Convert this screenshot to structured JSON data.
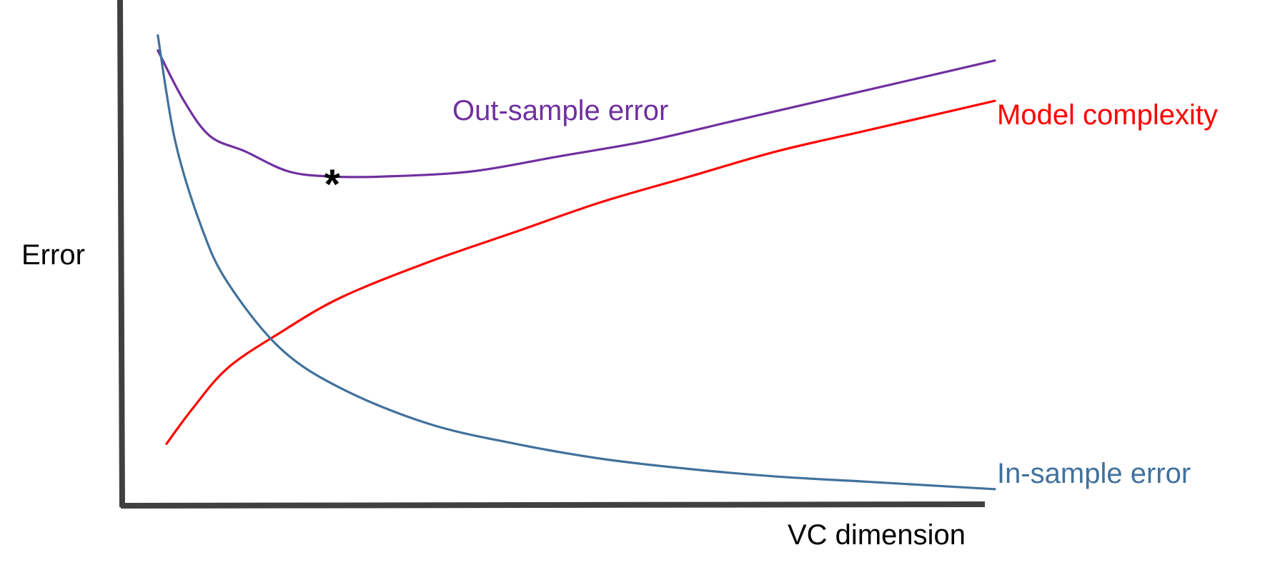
{
  "chart_data": {
    "type": "line",
    "title": "",
    "xlabel": "VC dimension",
    "ylabel": "Error",
    "xlim": [
      0,
      1
    ],
    "ylim": [
      0,
      1
    ],
    "grid": false,
    "legend": "none",
    "series": [
      {
        "name": "Out-sample error",
        "color": "#7030A0",
        "x": [
          0.04,
          0.07,
          0.1,
          0.14,
          0.19,
          0.24,
          0.3,
          0.4,
          0.5,
          0.6,
          0.7,
          0.8,
          0.9,
          1.0
        ],
        "y": [
          0.9,
          0.8,
          0.73,
          0.7,
          0.66,
          0.65,
          0.65,
          0.66,
          0.69,
          0.72,
          0.76,
          0.8,
          0.84,
          0.88
        ]
      },
      {
        "name": "Model complexity",
        "color": "#FF0000",
        "x": [
          0.05,
          0.08,
          0.12,
          0.18,
          0.25,
          0.35,
          0.45,
          0.55,
          0.65,
          0.75,
          0.85,
          0.95,
          1.0
        ],
        "y": [
          0.12,
          0.19,
          0.27,
          0.34,
          0.41,
          0.48,
          0.54,
          0.6,
          0.65,
          0.7,
          0.74,
          0.78,
          0.8
        ]
      },
      {
        "name": "In-sample error",
        "color": "#41719C",
        "x": [
          0.04,
          0.06,
          0.09,
          0.12,
          0.18,
          0.25,
          0.35,
          0.45,
          0.55,
          0.65,
          0.75,
          0.85,
          0.95,
          1.0
        ],
        "y": [
          0.93,
          0.72,
          0.55,
          0.44,
          0.31,
          0.23,
          0.16,
          0.12,
          0.09,
          0.07,
          0.055,
          0.045,
          0.035,
          0.03
        ]
      }
    ],
    "annotations": [
      {
        "text": "*",
        "x": 0.24,
        "y": 0.66,
        "color": "#000000"
      }
    ]
  }
}
